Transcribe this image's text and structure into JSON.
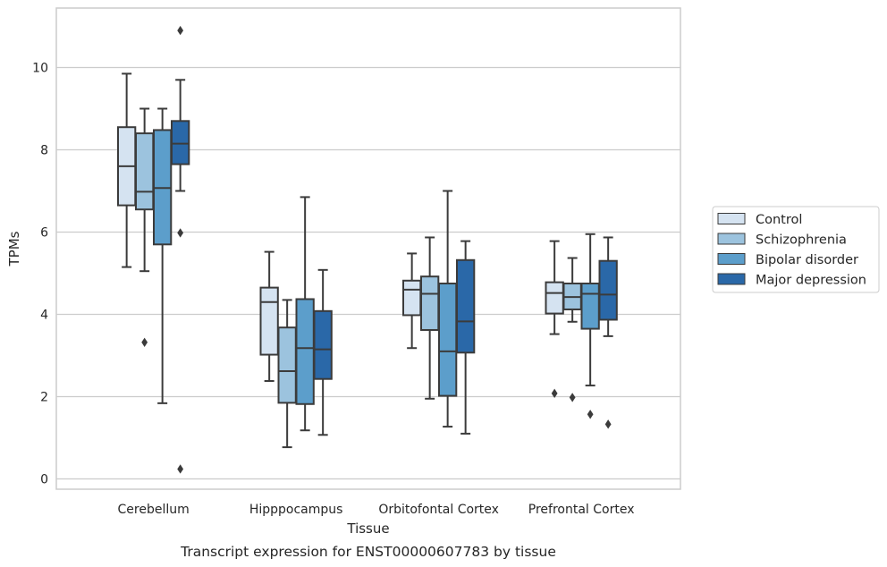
{
  "chart_data": {
    "type": "boxplot",
    "xlabel": "Tissue",
    "ylabel": "TPMs",
    "caption": "Transcript expression for ENST00000607783 by tissue",
    "ylim": [
      -0.25,
      11.5
    ],
    "yticks": [
      0,
      2,
      4,
      6,
      8,
      10
    ],
    "grid": "horizontal",
    "legend_position": "right",
    "categories": [
      "Cerebellum",
      "Hipppocampus",
      "Orbitofontal Cortex",
      "Prefrontal Cortex"
    ],
    "series": [
      {
        "name": "Control",
        "color": "#d5e3f1",
        "boxes": [
          {
            "whislo": 5.15,
            "q1": 6.65,
            "med": 7.6,
            "q3": 8.55,
            "whishi": 9.85,
            "fliers": []
          },
          {
            "whislo": 2.38,
            "q1": 3.02,
            "med": 4.3,
            "q3": 4.65,
            "whishi": 5.52,
            "fliers": []
          },
          {
            "whislo": 3.18,
            "q1": 3.98,
            "med": 4.6,
            "q3": 4.82,
            "whishi": 5.48,
            "fliers": []
          },
          {
            "whislo": 3.52,
            "q1": 4.02,
            "med": 4.52,
            "q3": 4.78,
            "whishi": 5.78,
            "fliers": [
              2.08
            ]
          }
        ]
      },
      {
        "name": "Schizophrenia",
        "color": "#9cc3de",
        "boxes": [
          {
            "whislo": 5.05,
            "q1": 6.55,
            "med": 6.98,
            "q3": 8.4,
            "whishi": 9.0,
            "fliers": [
              3.32
            ]
          },
          {
            "whislo": 0.77,
            "q1": 1.85,
            "med": 2.62,
            "q3": 3.68,
            "whishi": 4.35,
            "fliers": []
          },
          {
            "whislo": 1.95,
            "q1": 3.62,
            "med": 4.5,
            "q3": 4.92,
            "whishi": 5.87,
            "fliers": []
          },
          {
            "whislo": 3.82,
            "q1": 4.12,
            "med": 4.42,
            "q3": 4.75,
            "whishi": 5.37,
            "fliers": [
              1.98
            ]
          }
        ]
      },
      {
        "name": "Bipolar disorder",
        "color": "#5c9ecb",
        "boxes": [
          {
            "whislo": 1.84,
            "q1": 5.7,
            "med": 7.07,
            "q3": 8.48,
            "whishi": 9.0,
            "fliers": []
          },
          {
            "whislo": 1.18,
            "q1": 1.82,
            "med": 3.18,
            "q3": 4.37,
            "whishi": 6.85,
            "fliers": []
          },
          {
            "whislo": 1.27,
            "q1": 2.02,
            "med": 3.1,
            "q3": 4.75,
            "whishi": 7.0,
            "fliers": []
          },
          {
            "whislo": 2.27,
            "q1": 3.65,
            "med": 4.5,
            "q3": 4.75,
            "whishi": 5.95,
            "fliers": [
              1.57
            ]
          }
        ]
      },
      {
        "name": "Major depression",
        "color": "#2a68a8",
        "boxes": [
          {
            "whislo": 7.0,
            "q1": 7.65,
            "med": 8.15,
            "q3": 8.7,
            "whishi": 9.7,
            "fliers": [
              10.9,
              5.98,
              0.24
            ]
          },
          {
            "whislo": 1.07,
            "q1": 2.43,
            "med": 3.15,
            "q3": 4.08,
            "whishi": 5.08,
            "fliers": []
          },
          {
            "whislo": 1.1,
            "q1": 3.07,
            "med": 3.83,
            "q3": 5.32,
            "whishi": 5.78,
            "fliers": []
          },
          {
            "whislo": 3.47,
            "q1": 3.87,
            "med": 4.48,
            "q3": 5.3,
            "whishi": 5.87,
            "fliers": [
              1.33
            ]
          }
        ]
      }
    ]
  }
}
